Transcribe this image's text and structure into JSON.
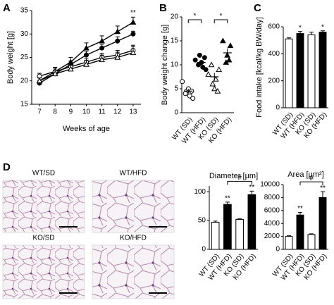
{
  "panels": [
    "A",
    "B",
    "C",
    "D"
  ],
  "images": {
    "labels": [
      "WT/SD",
      "WT/HFD",
      "KO/SD",
      "KO/HFD"
    ]
  },
  "chart_data": [
    {
      "type": "line",
      "xlabel": "Weeks of age",
      "ylabel": "Body  weight [g]",
      "x": [
        7,
        8,
        9,
        10,
        11,
        12,
        13
      ],
      "xlim": [
        6.5,
        13.5
      ],
      "xticks": [
        7,
        8,
        9,
        10,
        11,
        12,
        13
      ],
      "ylim": [
        15,
        35
      ],
      "yticks": [
        15,
        20,
        25,
        30,
        35
      ],
      "series": [
        {
          "color": "#000000",
          "marker": "triangle",
          "filled": true,
          "values": [
            20,
            22,
            24,
            27,
            28.5,
            30.5,
            32.5
          ],
          "errors": [
            0.8,
            0.9,
            1,
            1.1,
            1.1,
            1.2,
            1.1
          ]
        },
        {
          "color": "#000000",
          "marker": "circle",
          "filled": true,
          "values": [
            19.5,
            21.5,
            23.5,
            25.5,
            27,
            28.5,
            30
          ],
          "errors": [
            0.6,
            0.7,
            0.7,
            0.8,
            0.8,
            0.9,
            0.6
          ]
        },
        {
          "color": "#000000",
          "marker": "circle",
          "filled": false,
          "values": [
            21,
            22,
            23,
            24,
            25,
            25.5,
            26.5
          ],
          "errors": [
            0.6,
            0.7,
            0.7,
            0.8,
            0.9,
            1,
            1.1
          ]
        },
        {
          "color": "#000000",
          "marker": "triangle",
          "filled": false,
          "values": [
            20,
            21.5,
            22.5,
            23.5,
            24.5,
            25,
            26
          ],
          "errors": [
            0.6,
            0.7,
            0.8,
            0.9,
            1,
            1.1,
            1.3
          ]
        }
      ],
      "annotations": [
        {
          "text": "**",
          "x": 13
        }
      ]
    },
    {
      "type": "strip",
      "ylabel": "Body weight change [g]",
      "categories": [
        "WT (SD)",
        "WT (HFD)",
        "KO (SD)",
        "KO (HFD)"
      ],
      "ylim": [
        0,
        20
      ],
      "yticks": [
        0,
        5,
        10,
        15,
        20
      ],
      "markers": [
        "circle",
        "circle",
        "triangle",
        "triangle"
      ],
      "filled": [
        false,
        true,
        false,
        true
      ],
      "points": [
        [
          6.5,
          4.5,
          4,
          3.5,
          5,
          3,
          4.5
        ],
        [
          11,
          12,
          10,
          9.5,
          10.5,
          9,
          11.5
        ],
        [
          8,
          6,
          10,
          7,
          5,
          9,
          4.5
        ],
        [
          15,
          12,
          10.5,
          14,
          11
        ]
      ],
      "means": [
        4.5,
        10.5,
        7.5,
        12.5
      ],
      "errors": [
        0.5,
        0.4,
        0.8,
        0.9
      ],
      "brackets": [
        {
          "text": "*",
          "from": 0,
          "to": 1
        },
        {
          "text": "*",
          "from": 2,
          "to": 3
        }
      ]
    },
    {
      "type": "bar",
      "ylabel": "Food intake [kcal/kg BW/day]",
      "categories": [
        "WT (SD)",
        "WT (HFD)",
        "KO (SD)",
        "KO (HFD)"
      ],
      "ylim": [
        0,
        600
      ],
      "yticks": [
        0,
        200,
        400,
        600
      ],
      "values": [
        510,
        550,
        540,
        560
      ],
      "errors": [
        8,
        15,
        20,
        10
      ],
      "colors": [
        "#ffffff",
        "#000000",
        "#ffffff",
        "#000000"
      ],
      "annotations": [
        {
          "text": "*",
          "category": 1
        },
        {
          "text": "*",
          "category": 3
        }
      ]
    },
    {
      "type": "bar",
      "title": "Diameter [μm]",
      "categories": [
        "WT (SD)",
        "WT (HFD)",
        "KO (SD)",
        "KO (HFD)"
      ],
      "ylim": [
        0,
        110
      ],
      "yticks": [
        0,
        50,
        100
      ],
      "values": [
        47,
        78,
        52,
        95
      ],
      "errors": [
        2,
        4,
        1,
        6
      ],
      "colors": [
        "#ffffff",
        "#000000",
        "#ffffff",
        "#000000"
      ],
      "annotations": [
        {
          "text": "**",
          "category": 1
        },
        {
          "text": "**",
          "category": 3
        }
      ],
      "brackets": [
        {
          "text": "#",
          "from": 1,
          "to": 3
        }
      ]
    },
    {
      "type": "bar",
      "title": "Area [μm²]",
      "categories": [
        "WT (SD)",
        "WT (HFD)",
        "KO (SD)",
        "KO (HFD)"
      ],
      "ylim": [
        0,
        10000
      ],
      "yticks": [
        0,
        2000,
        4000,
        6000,
        8000,
        10000
      ],
      "values": [
        2000,
        5300,
        2300,
        8000
      ],
      "errors": [
        100,
        400,
        100,
        900
      ],
      "colors": [
        "#ffffff",
        "#000000",
        "#ffffff",
        "#000000"
      ],
      "annotations": [
        {
          "text": "**",
          "category": 1
        },
        {
          "text": "**",
          "category": 3
        }
      ],
      "brackets": [
        {
          "text": "#",
          "from": 1,
          "to": 3
        }
      ]
    }
  ]
}
